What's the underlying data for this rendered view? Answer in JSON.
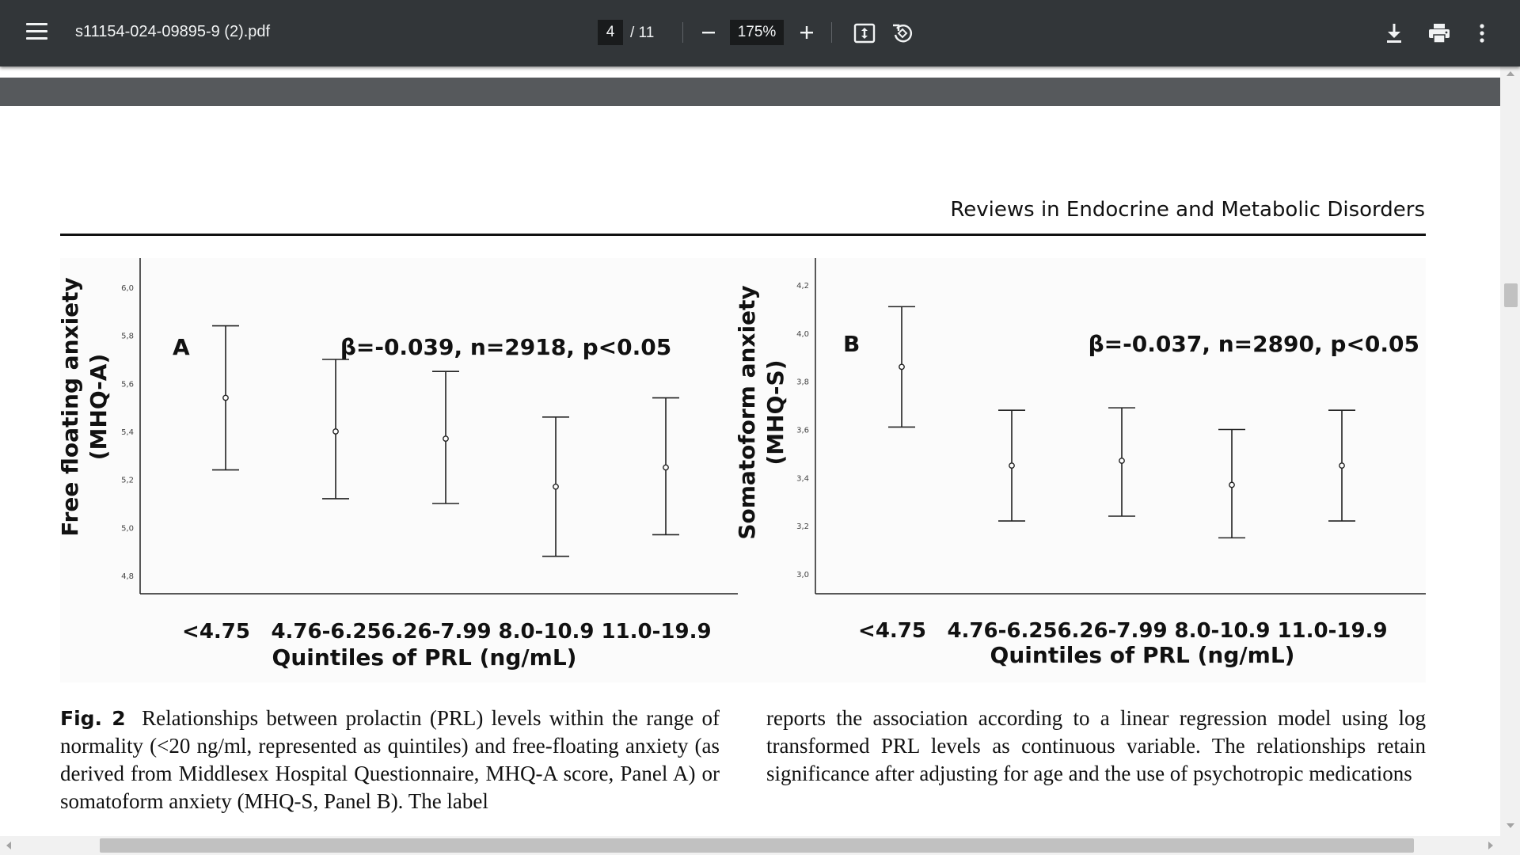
{
  "toolbar": {
    "title": "s11154-024-09895-9 (2).pdf",
    "page_current": "4",
    "page_total": "/ 11",
    "zoom": "175%",
    "icons": [
      "menu-icon",
      "zoom-out-icon",
      "zoom-in-icon",
      "fit-to-page-icon",
      "rotate-icon",
      "download-icon",
      "print-icon",
      "more-options-icon"
    ]
  },
  "document": {
    "running_head": "Reviews in Endocrine and Metabolic Disorders",
    "caption": {
      "label": "Fig. 2",
      "left_text": "Relationships between prolactin (PRL) levels within the range of normality (<20 ng/ml, represented as quintiles) and free-floating anxiety (as derived from Middlesex Hospital Questionnaire, MHQ-A score, Panel A) or somatoform anxiety (MHQ-S, Panel B). The label",
      "right_text": "reports the association according to a linear regression model using log transformed PRL levels as continuous variable. The relationships retain significance after adjusting for age and the use of psychotropic medications"
    }
  },
  "chart_data": [
    {
      "type": "errorbar",
      "panel": "A",
      "annotation": "β=-0.039, n=2918, p<0.05",
      "ylabel": "Free floating anxiety (MHQ-A)",
      "xlabel": "Quintiles of PRL (ng/mL)",
      "categories": [
        "<4.75",
        "4.76-6.25",
        "6.26-7.99",
        "8.0-10.9",
        "11.0-19.9"
      ],
      "ylim": [
        4.8,
        6.0
      ],
      "yticks": [
        "6,0",
        "5,8",
        "5,6",
        "5,4",
        "5,2",
        "5,0",
        "4,8"
      ],
      "means": [
        5.54,
        5.4,
        5.37,
        5.17,
        5.25
      ],
      "lower": [
        5.24,
        5.12,
        5.1,
        4.88,
        4.97
      ],
      "upper": [
        5.84,
        5.7,
        5.65,
        5.46,
        5.54
      ]
    },
    {
      "type": "errorbar",
      "panel": "B",
      "annotation": "β=-0.037, n=2890, p<0.05",
      "ylabel": "Somatoform anxiety (MHQ-S)",
      "xlabel": "Quintiles of PRL (ng/mL)",
      "categories": [
        "<4.75",
        "4.76-6.25",
        "6.26-7.99",
        "8.0-10.9",
        "11.0-19.9"
      ],
      "ylim": [
        3.0,
        4.2
      ],
      "yticks": [
        "4,2",
        "4,0",
        "3,8",
        "3,6",
        "3,4",
        "3,2",
        "3,0"
      ],
      "means": [
        3.86,
        3.45,
        3.47,
        3.37,
        3.45
      ],
      "lower": [
        3.61,
        3.22,
        3.24,
        3.15,
        3.22
      ],
      "upper": [
        4.11,
        3.68,
        3.69,
        3.6,
        3.68
      ]
    }
  ]
}
